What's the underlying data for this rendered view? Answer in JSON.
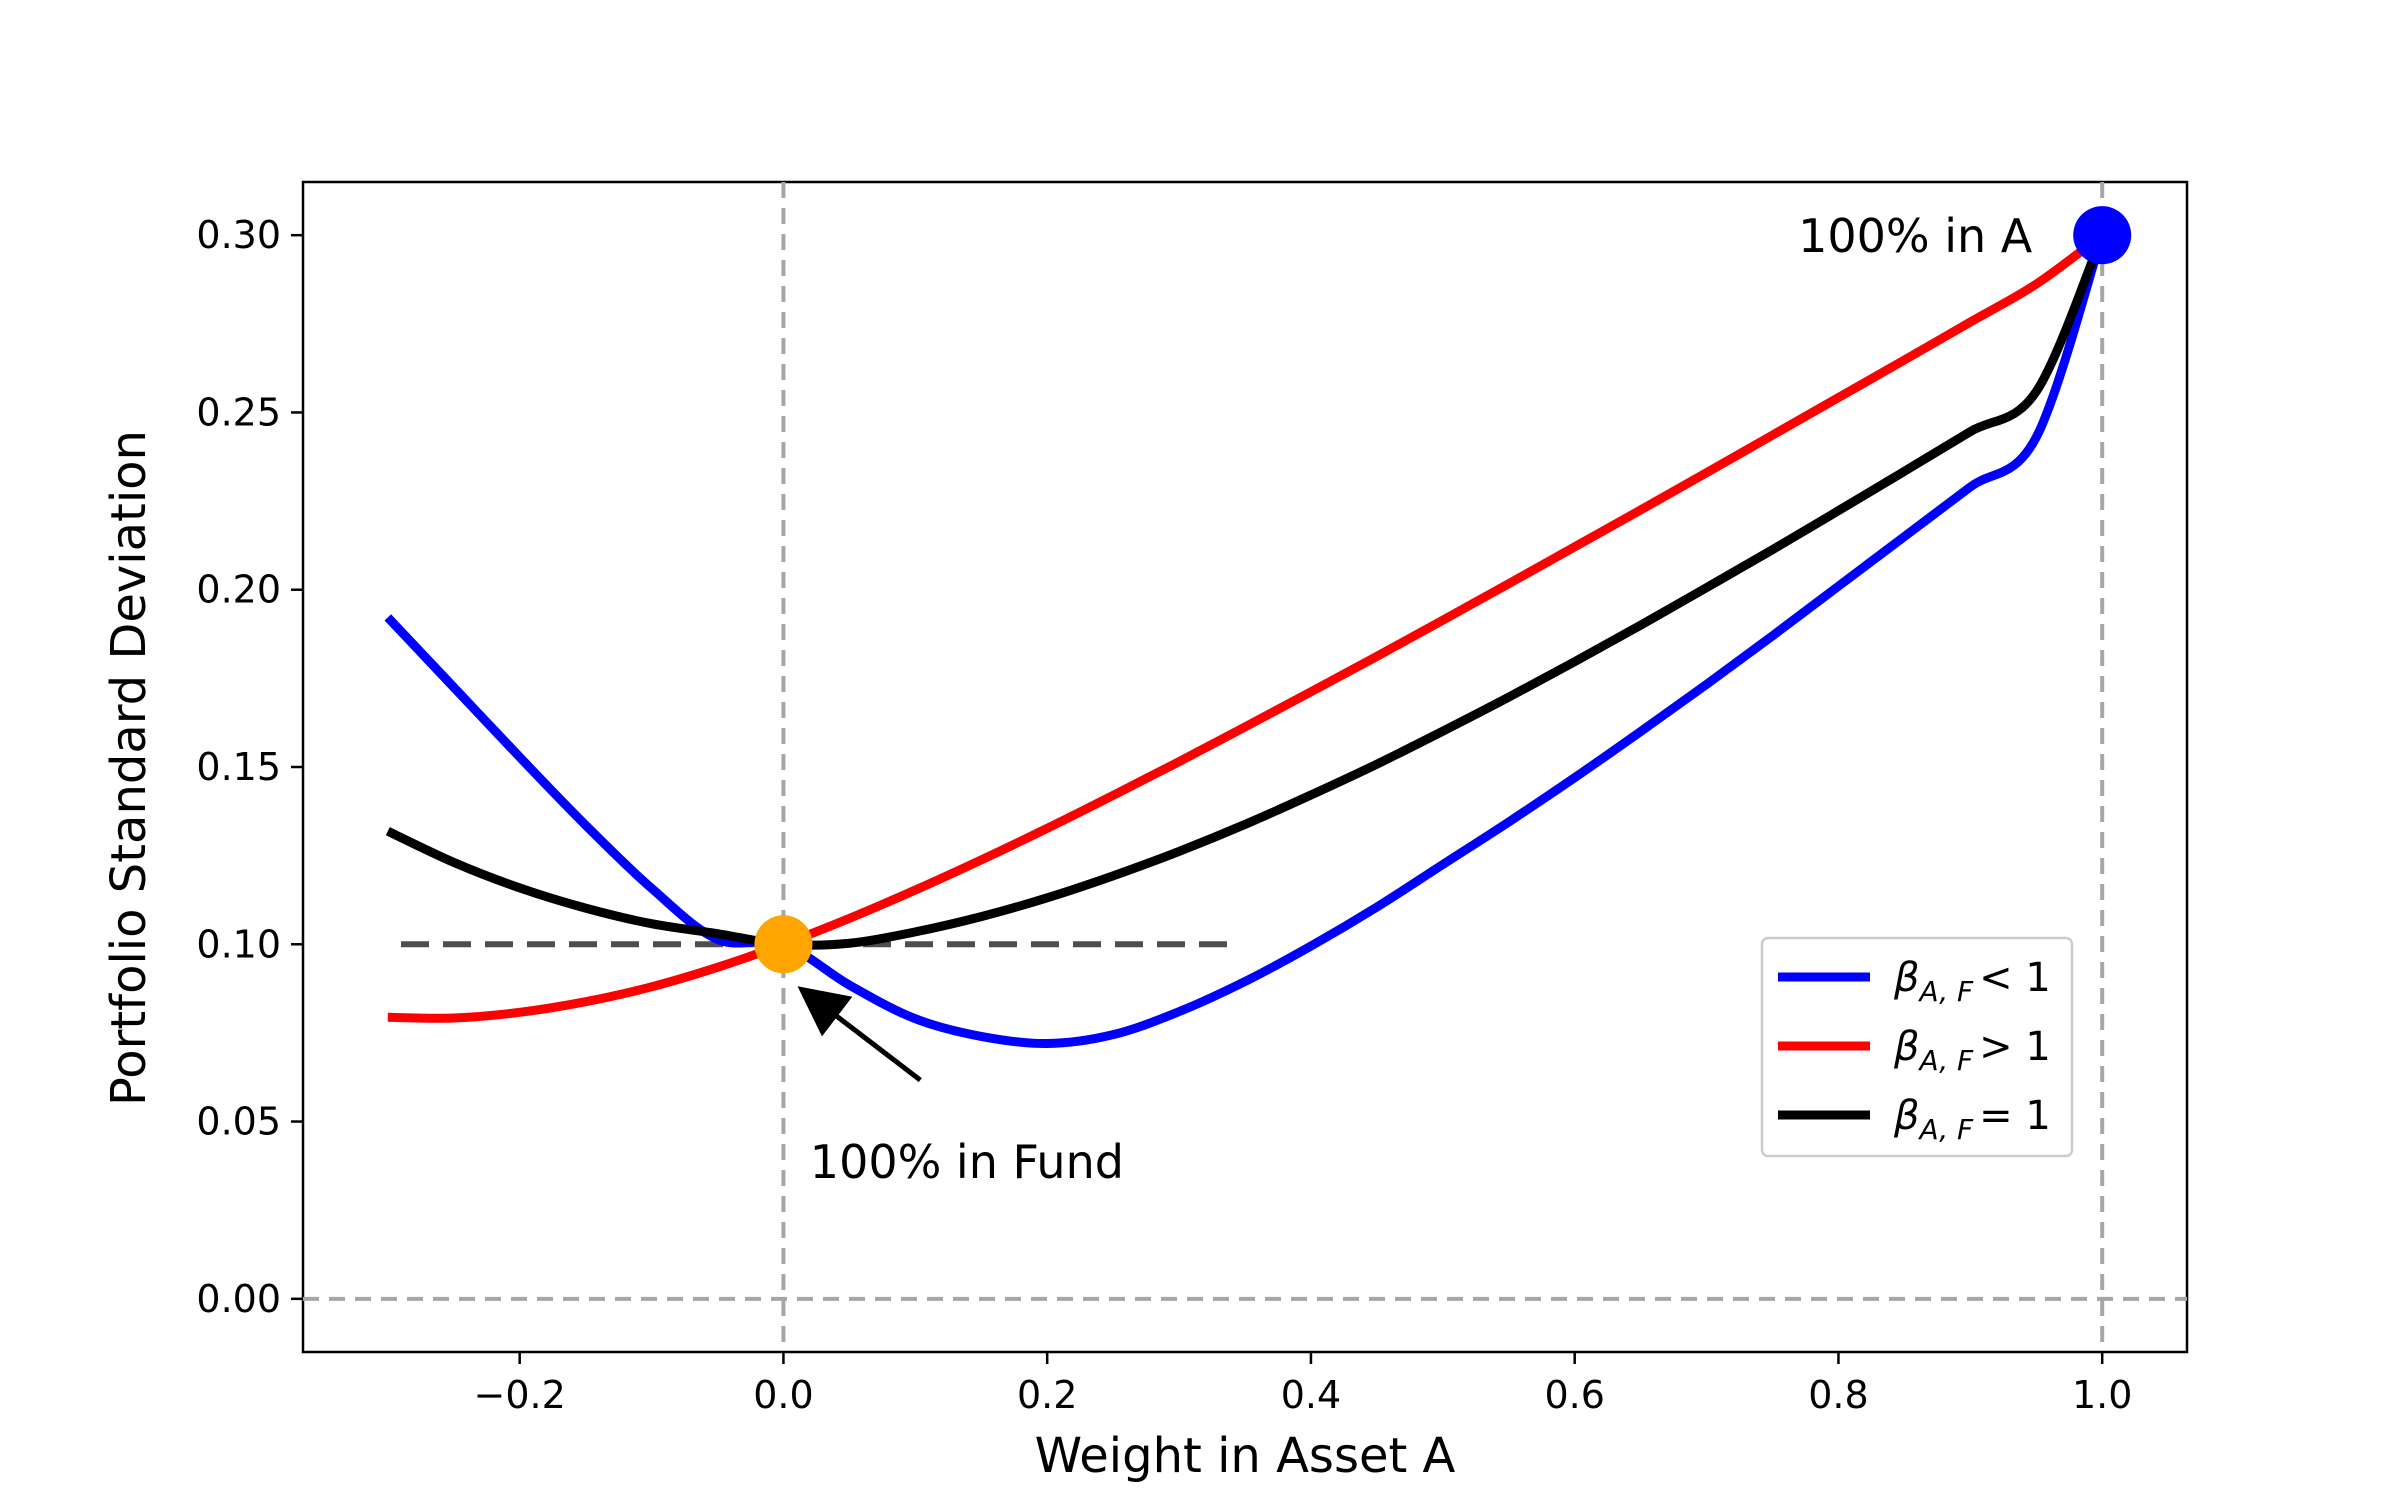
{
  "chart_data": {
    "type": "line",
    "title": "",
    "xlabel": "Weight in Asset A",
    "ylabel": "Portfolio Standard Deviation",
    "xlim": [
      -0.3643,
      1.0643
    ],
    "ylim": [
      -0.015,
      0.315
    ],
    "x_ticks": [
      -0.2,
      0.0,
      0.2,
      0.4,
      0.6,
      0.8,
      1.0
    ],
    "x_tick_labels": [
      "−0.2",
      "0.0",
      "0.2",
      "0.4",
      "0.6",
      "0.8",
      "1.0"
    ],
    "y_ticks": [
      0.0,
      0.05,
      0.1,
      0.15,
      0.2,
      0.25,
      0.3
    ],
    "y_tick_labels": [
      "0.00",
      "0.05",
      "0.10",
      "0.15",
      "0.20",
      "0.25",
      "0.30"
    ],
    "grid": false,
    "legend_position": "center-right",
    "x": [
      -0.3,
      -0.25,
      -0.2,
      -0.15,
      -0.1,
      -0.05,
      0.0,
      0.05,
      0.1,
      0.15,
      0.2,
      0.25,
      0.3,
      0.35,
      0.4,
      0.45,
      0.5,
      0.55,
      0.6,
      0.65,
      0.7,
      0.75,
      0.8,
      0.85,
      0.9,
      0.95,
      1.0
    ],
    "series": [
      {
        "legend_label": "β",
        "legend_subscript": "A, F",
        "legend_relation": "< 1",
        "color": "#0000ff",
        "values": [
          0.1922,
          0.1725,
          0.1528,
          0.1336,
          0.1158,
          0.1014,
          0.1,
          0.0885,
          0.079,
          0.074,
          0.072,
          0.0745,
          0.081,
          0.0895,
          0.0995,
          0.1105,
          0.1225,
          0.1345,
          0.147,
          0.16,
          0.1733,
          0.187,
          0.201,
          0.215,
          0.229,
          0.243,
          0.3
        ]
      },
      {
        "legend_label": "β",
        "legend_subscript": "A, F",
        "legend_relation": "> 1",
        "color": "#ff0000",
        "values": [
          0.0794,
          0.0792,
          0.0808,
          0.0838,
          0.088,
          0.0935,
          0.1,
          0.1073,
          0.1153,
          0.1238,
          0.1327,
          0.142,
          0.1515,
          0.1613,
          0.1712,
          0.1812,
          0.1914,
          0.2017,
          0.2121,
          0.2225,
          0.233,
          0.2436,
          0.2542,
          0.2648,
          0.2755,
          0.2862,
          0.3
        ]
      },
      {
        "legend_label": "β",
        "legend_subscript": "A, F",
        "legend_relation": "= 1",
        "color": "#000000",
        "values": [
          0.1319,
          0.1231,
          0.1159,
          0.1102,
          0.1058,
          0.103,
          0.1,
          0.1003,
          0.1035,
          0.1078,
          0.1131,
          0.1193,
          0.1262,
          0.1338,
          0.1421,
          0.1508,
          0.1601,
          0.1697,
          0.1797,
          0.19,
          0.2006,
          0.2113,
          0.2223,
          0.2334,
          0.2446,
          0.2559,
          0.3
        ]
      }
    ],
    "reference_lines": [
      {
        "orientation": "vertical",
        "x": 0.0,
        "style": "dashed",
        "color": "#a6a6a6"
      },
      {
        "orientation": "vertical",
        "x": 1.0,
        "style": "dashed",
        "color": "#a6a6a6"
      },
      {
        "orientation": "horizontal",
        "y": 0.0,
        "style": "dashed",
        "color": "#a6a6a6"
      },
      {
        "orientation": "horizontal",
        "y": 0.1,
        "x_from": -0.29,
        "x_to": 0.34,
        "style": "dashed",
        "color": "#4d4d4d"
      }
    ],
    "points": [
      {
        "x": 0.0,
        "y": 0.1,
        "color": "#ffa500"
      },
      {
        "x": 1.0,
        "y": 0.3,
        "color": "#0000ff"
      }
    ],
    "annotations": [
      {
        "text": "100% in A",
        "x": 0.95,
        "y": 0.3
      },
      {
        "text": "100% in Fund",
        "x": 0.1,
        "y": 0.06,
        "arrow_to": {
          "x": 0.0,
          "y": 0.1
        }
      }
    ]
  }
}
